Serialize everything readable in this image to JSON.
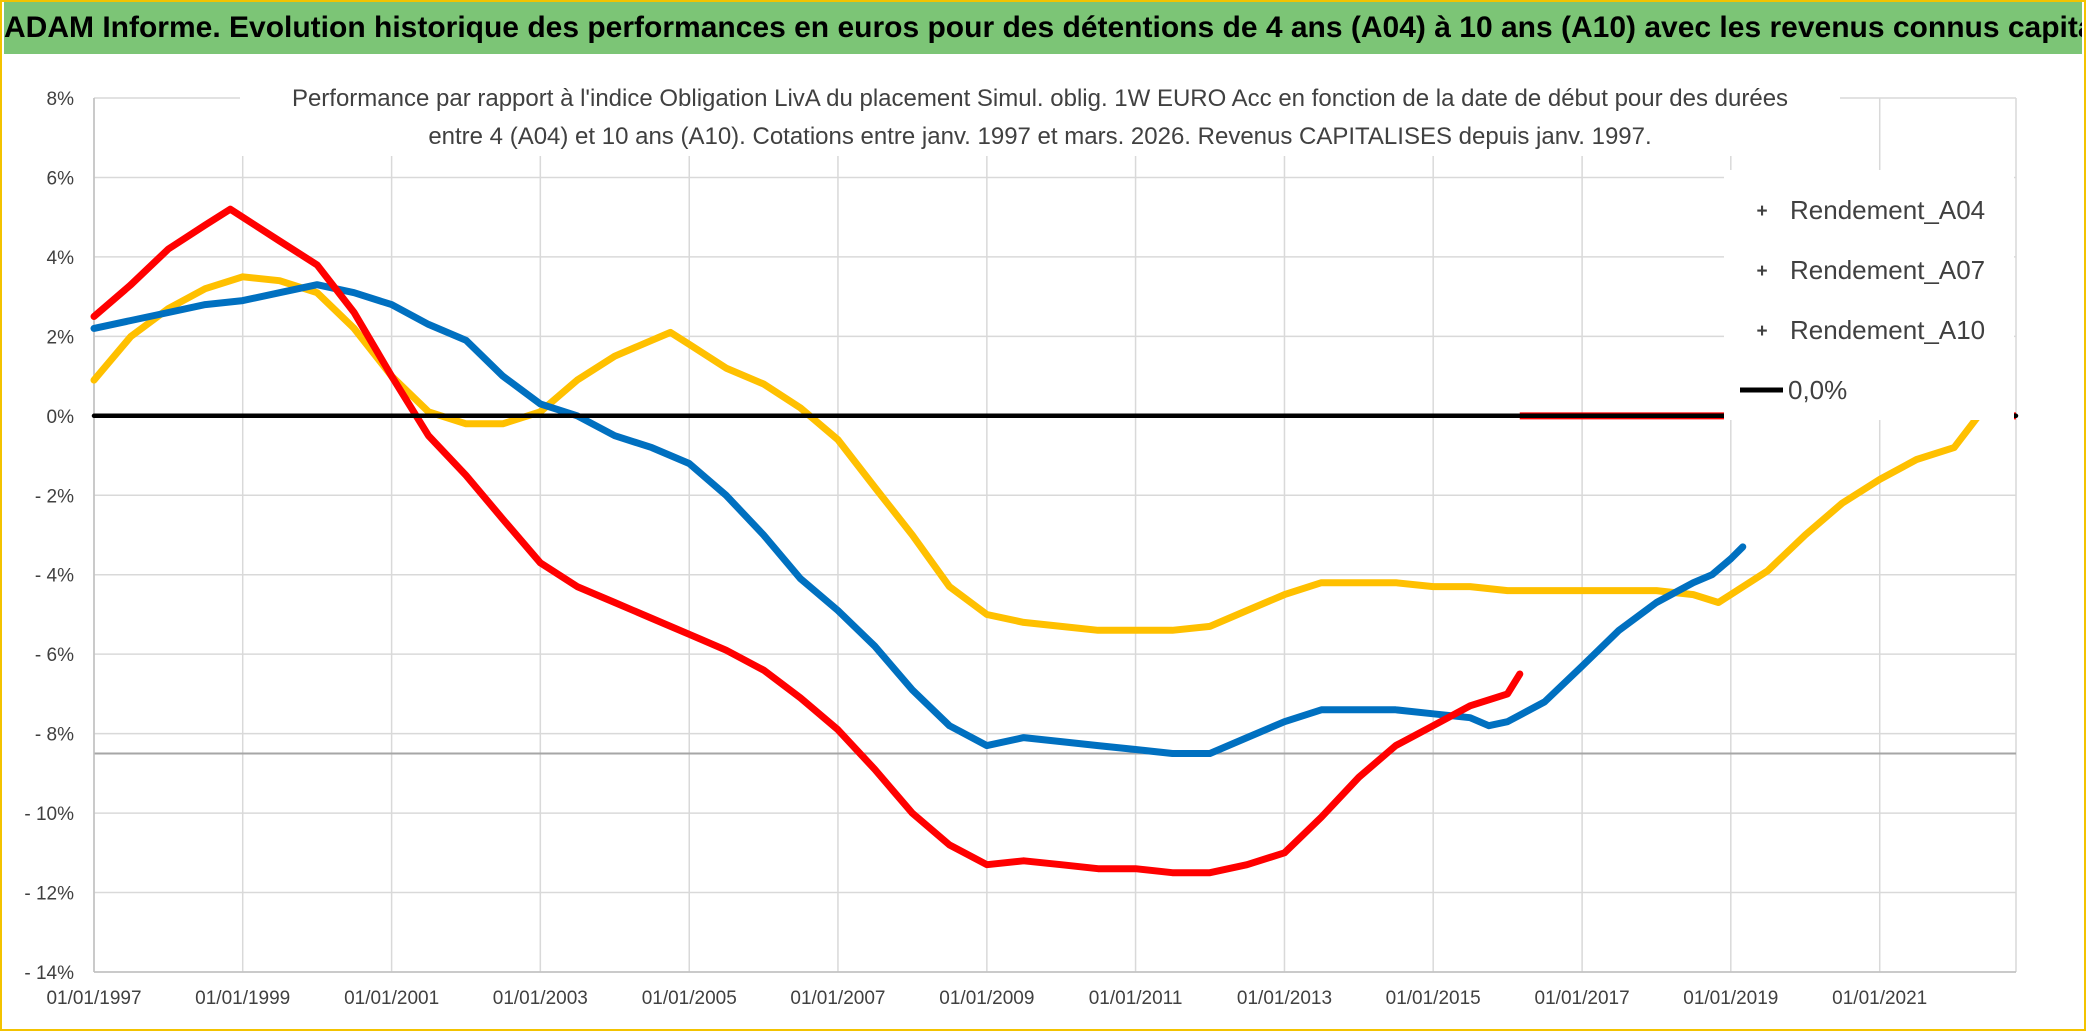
{
  "banner": {
    "title": "ADAM Informe. Evolution historique des performances en euros pour des détentions de 4 ans (A04) à 10 ans (A10) avec les revenus connus capitalisés"
  },
  "chart_data": {
    "type": "scatter",
    "title": "",
    "subtitle_line1": "Performance par rapport à l'indice Obligation LivA  du placement Simul. oblig. 1W EURO Acc en fonction de la date de début pour des durées",
    "subtitle_line2": "entre 4 (A04) et 10 ans (A10). Cotations entre janv. 1997 et mars. 2026. Revenus CAPITALISES depuis janv. 1997.",
    "xlabel": "",
    "ylabel": "",
    "x_range": [
      "1997-01-01",
      "2022-11-01"
    ],
    "ylim": [
      -14,
      8
    ],
    "y_ticks": [
      8,
      6,
      4,
      2,
      0,
      -2,
      -4,
      -6,
      -8,
      -10,
      -12,
      -14
    ],
    "y_tick_labels": [
      "8%",
      "6%",
      "4%",
      "2%",
      "0%",
      "- 2%",
      "- 4%",
      "- 6%",
      "- 8%",
      "- 10%",
      "- 12%",
      "- 14%"
    ],
    "x_ticks": [
      "1997-01-01",
      "1999-01-01",
      "2001-01-01",
      "2003-01-01",
      "2005-01-01",
      "2007-01-01",
      "2009-01-01",
      "2011-01-01",
      "2013-01-01",
      "2015-01-01",
      "2017-01-01",
      "2019-01-01",
      "2021-01-01"
    ],
    "x_tick_labels": [
      "01/01/1997",
      "01/01/1999",
      "01/01/2001",
      "01/01/2003",
      "01/01/2005",
      "01/01/2007",
      "01/01/2009",
      "01/01/2011",
      "01/01/2013",
      "01/01/2015",
      "01/01/2017",
      "01/01/2019",
      "01/01/2021"
    ],
    "grid": true,
    "legend_position": "top-right",
    "series": [
      {
        "name": "Rendement_A04",
        "color": "#ffc000",
        "points": [
          [
            "1997-01-01",
            0.9
          ],
          [
            "1997-07-01",
            2.0
          ],
          [
            "1998-01-01",
            2.7
          ],
          [
            "1998-07-01",
            3.2
          ],
          [
            "1999-01-01",
            3.5
          ],
          [
            "1999-07-01",
            3.4
          ],
          [
            "2000-01-01",
            3.1
          ],
          [
            "2000-07-01",
            2.2
          ],
          [
            "2001-01-01",
            1.0
          ],
          [
            "2001-07-01",
            0.1
          ],
          [
            "2002-01-01",
            -0.2
          ],
          [
            "2002-07-01",
            -0.2
          ],
          [
            "2003-01-01",
            0.1
          ],
          [
            "2003-07-01",
            0.9
          ],
          [
            "2004-01-01",
            1.5
          ],
          [
            "2004-07-01",
            1.9
          ],
          [
            "2004-10-01",
            2.1
          ],
          [
            "2005-01-01",
            1.8
          ],
          [
            "2005-07-01",
            1.2
          ],
          [
            "2006-01-01",
            0.8
          ],
          [
            "2006-07-01",
            0.2
          ],
          [
            "2007-01-01",
            -0.6
          ],
          [
            "2007-07-01",
            -1.8
          ],
          [
            "2008-01-01",
            -3.0
          ],
          [
            "2008-07-01",
            -4.3
          ],
          [
            "2009-01-01",
            -5.0
          ],
          [
            "2009-07-01",
            -5.2
          ],
          [
            "2010-01-01",
            -5.3
          ],
          [
            "2010-07-01",
            -5.4
          ],
          [
            "2011-01-01",
            -5.4
          ],
          [
            "2011-07-01",
            -5.4
          ],
          [
            "2012-01-01",
            -5.3
          ],
          [
            "2012-07-01",
            -4.9
          ],
          [
            "2013-01-01",
            -4.5
          ],
          [
            "2013-07-01",
            -4.2
          ],
          [
            "2014-01-01",
            -4.2
          ],
          [
            "2014-07-01",
            -4.2
          ],
          [
            "2015-01-01",
            -4.3
          ],
          [
            "2015-07-01",
            -4.3
          ],
          [
            "2016-01-01",
            -4.4
          ],
          [
            "2016-07-01",
            -4.4
          ],
          [
            "2017-01-01",
            -4.4
          ],
          [
            "2017-07-01",
            -4.4
          ],
          [
            "2018-01-01",
            -4.4
          ],
          [
            "2018-07-01",
            -4.5
          ],
          [
            "2018-11-01",
            -4.7
          ],
          [
            "2019-01-01",
            -4.5
          ],
          [
            "2019-07-01",
            -3.9
          ],
          [
            "2020-01-01",
            -3.0
          ],
          [
            "2020-07-01",
            -2.2
          ],
          [
            "2021-01-01",
            -1.6
          ],
          [
            "2021-07-01",
            -1.1
          ],
          [
            "2022-01-01",
            -0.8
          ],
          [
            "2022-05-01",
            0.0
          ]
        ]
      },
      {
        "name": "Rendement_A07",
        "color": "#0070c0",
        "points": [
          [
            "1997-01-01",
            2.2
          ],
          [
            "1997-07-01",
            2.4
          ],
          [
            "1998-01-01",
            2.6
          ],
          [
            "1998-07-01",
            2.8
          ],
          [
            "1999-01-01",
            2.9
          ],
          [
            "1999-07-01",
            3.1
          ],
          [
            "2000-01-01",
            3.3
          ],
          [
            "2000-07-01",
            3.1
          ],
          [
            "2001-01-01",
            2.8
          ],
          [
            "2001-07-01",
            2.3
          ],
          [
            "2002-01-01",
            1.9
          ],
          [
            "2002-07-01",
            1.0
          ],
          [
            "2003-01-01",
            0.3
          ],
          [
            "2003-07-01",
            0.0
          ],
          [
            "2004-01-01",
            -0.5
          ],
          [
            "2004-07-01",
            -0.8
          ],
          [
            "2005-01-01",
            -1.2
          ],
          [
            "2005-07-01",
            -2.0
          ],
          [
            "2006-01-01",
            -3.0
          ],
          [
            "2006-07-01",
            -4.1
          ],
          [
            "2007-01-01",
            -4.9
          ],
          [
            "2007-07-01",
            -5.8
          ],
          [
            "2008-01-01",
            -6.9
          ],
          [
            "2008-07-01",
            -7.8
          ],
          [
            "2009-01-01",
            -8.3
          ],
          [
            "2009-07-01",
            -8.1
          ],
          [
            "2010-01-01",
            -8.2
          ],
          [
            "2010-07-01",
            -8.3
          ],
          [
            "2011-01-01",
            -8.4
          ],
          [
            "2011-07-01",
            -8.5
          ],
          [
            "2012-01-01",
            -8.5
          ],
          [
            "2012-07-01",
            -8.1
          ],
          [
            "2013-01-01",
            -7.7
          ],
          [
            "2013-07-01",
            -7.4
          ],
          [
            "2014-01-01",
            -7.4
          ],
          [
            "2014-07-01",
            -7.4
          ],
          [
            "2015-01-01",
            -7.5
          ],
          [
            "2015-07-01",
            -7.6
          ],
          [
            "2015-10-01",
            -7.8
          ],
          [
            "2016-01-01",
            -7.7
          ],
          [
            "2016-07-01",
            -7.2
          ],
          [
            "2017-01-01",
            -6.3
          ],
          [
            "2017-07-01",
            -5.4
          ],
          [
            "2018-01-01",
            -4.7
          ],
          [
            "2018-07-01",
            -4.2
          ],
          [
            "2018-10-01",
            -4.0
          ],
          [
            "2019-01-01",
            -3.6
          ],
          [
            "2019-03-01",
            -3.3
          ]
        ]
      },
      {
        "name": "Rendement_A10",
        "color": "#ff0000",
        "points": [
          [
            "1997-01-01",
            2.5
          ],
          [
            "1997-07-01",
            3.3
          ],
          [
            "1998-01-01",
            4.2
          ],
          [
            "1998-07-01",
            4.8
          ],
          [
            "1998-11-01",
            5.2
          ],
          [
            "1999-01-01",
            5.0
          ],
          [
            "1999-07-01",
            4.4
          ],
          [
            "2000-01-01",
            3.8
          ],
          [
            "2000-07-01",
            2.6
          ],
          [
            "2001-01-01",
            1.0
          ],
          [
            "2001-07-01",
            -0.5
          ],
          [
            "2002-01-01",
            -1.5
          ],
          [
            "2002-07-01",
            -2.6
          ],
          [
            "2003-01-01",
            -3.7
          ],
          [
            "2003-07-01",
            -4.3
          ],
          [
            "2004-01-01",
            -4.7
          ],
          [
            "2004-07-01",
            -5.1
          ],
          [
            "2005-01-01",
            -5.5
          ],
          [
            "2005-07-01",
            -5.9
          ],
          [
            "2006-01-01",
            -6.4
          ],
          [
            "2006-07-01",
            -7.1
          ],
          [
            "2007-01-01",
            -7.9
          ],
          [
            "2007-07-01",
            -8.9
          ],
          [
            "2008-01-01",
            -10.0
          ],
          [
            "2008-07-01",
            -10.8
          ],
          [
            "2009-01-01",
            -11.3
          ],
          [
            "2009-07-01",
            -11.2
          ],
          [
            "2010-01-01",
            -11.3
          ],
          [
            "2010-07-01",
            -11.4
          ],
          [
            "2011-01-01",
            -11.4
          ],
          [
            "2011-07-01",
            -11.5
          ],
          [
            "2012-01-01",
            -11.5
          ],
          [
            "2012-07-01",
            -11.3
          ],
          [
            "2013-01-01",
            -11.0
          ],
          [
            "2013-07-01",
            -10.1
          ],
          [
            "2014-01-01",
            -9.1
          ],
          [
            "2014-07-01",
            -8.3
          ],
          [
            "2015-01-01",
            -7.8
          ],
          [
            "2015-07-01",
            -7.3
          ],
          [
            "2016-01-01",
            -7.0
          ],
          [
            "2016-03-01",
            -6.5
          ]
        ]
      },
      {
        "name": "0,0%",
        "color": "#000000",
        "points": [
          [
            "1997-01-01",
            0.0
          ],
          [
            "2022-11-01",
            0.0
          ]
        ]
      }
    ],
    "a10_zero_band": {
      "from": "2016-03-01",
      "to": "2022-11-01",
      "value": 0.0,
      "color": "#ff0000"
    }
  }
}
